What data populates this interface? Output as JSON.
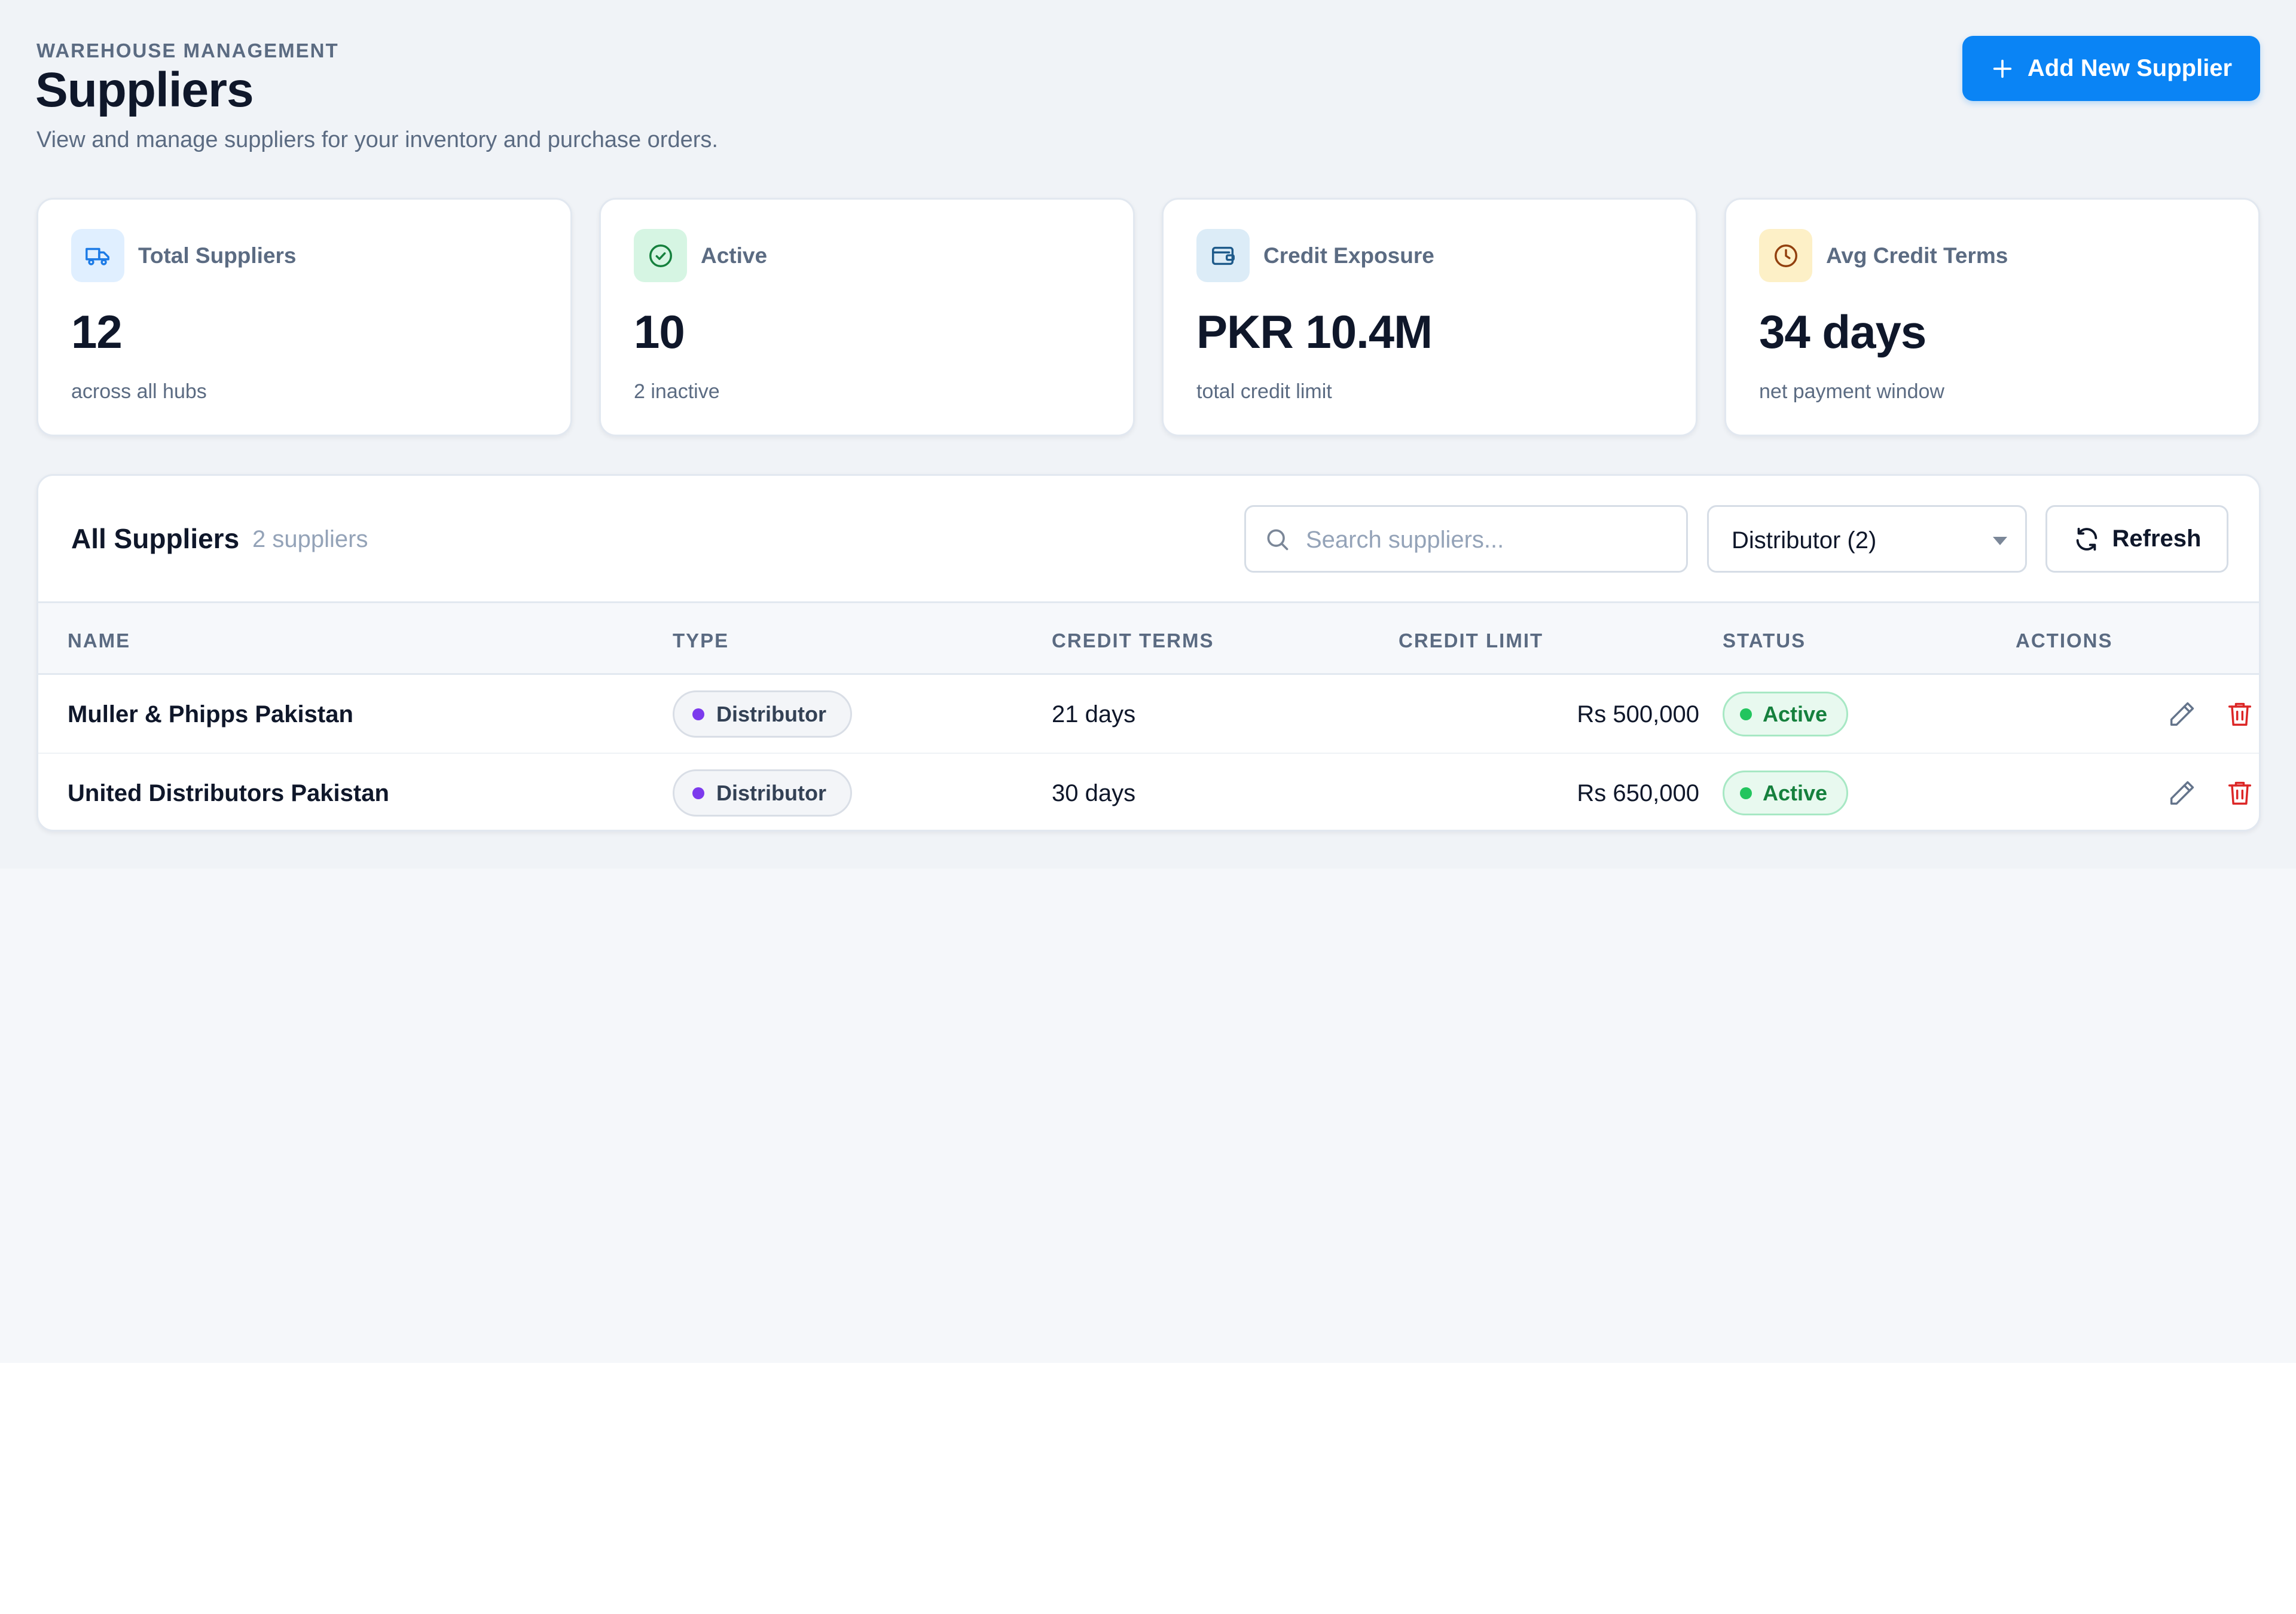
{
  "header": {
    "eyebrow": "WAREHOUSE MANAGEMENT",
    "title": "Suppliers",
    "subtitle": "View and manage suppliers for your inventory and purchase orders.",
    "add_button": "Add New Supplier",
    "add_icon": "plus-icon"
  },
  "stats": [
    {
      "label": "Total Suppliers",
      "value": "12",
      "note": "across all hubs",
      "icon": "truck-icon",
      "icon_bg": "#e0efff",
      "icon_color": "#1d7be6"
    },
    {
      "label": "Active",
      "value": "10",
      "note": "2 inactive",
      "icon": "check-circle-icon",
      "icon_bg": "#d6f5e3",
      "icon_color": "#15803d"
    },
    {
      "label": "Credit Exposure",
      "value": "PKR 10.4M",
      "note": "total credit limit",
      "icon": "wallet-icon",
      "icon_bg": "#dcecf7",
      "icon_color": "#1e5a8a"
    },
    {
      "label": "Avg Credit Terms",
      "value": "34 days",
      "note": "net payment window",
      "icon": "clock-icon",
      "icon_bg": "#fdf0c7",
      "icon_color": "#92400e"
    }
  ],
  "table": {
    "title": "All Suppliers",
    "count": "2 suppliers",
    "search_placeholder": "Search suppliers...",
    "filter_selected": "Distributor (2)",
    "refresh_label": "Refresh",
    "columns": [
      "NAME",
      "TYPE",
      "CREDIT TERMS",
      "CREDIT LIMIT",
      "STATUS",
      "ACTIONS"
    ],
    "rows": [
      {
        "name": "Muller & Phipps Pakistan",
        "type": "Distributor",
        "terms": "21 days",
        "limit": "Rs 500,000",
        "status": "Active"
      },
      {
        "name": "United Distributors Pakistan",
        "type": "Distributor",
        "terms": "30 days",
        "limit": "Rs 650,000",
        "status": "Active"
      }
    ]
  },
  "colors": {
    "accent": "#0a84f5",
    "distributor_dot": "#7c3aed",
    "active_green": "#15803d",
    "delete_red": "#dc2626"
  }
}
